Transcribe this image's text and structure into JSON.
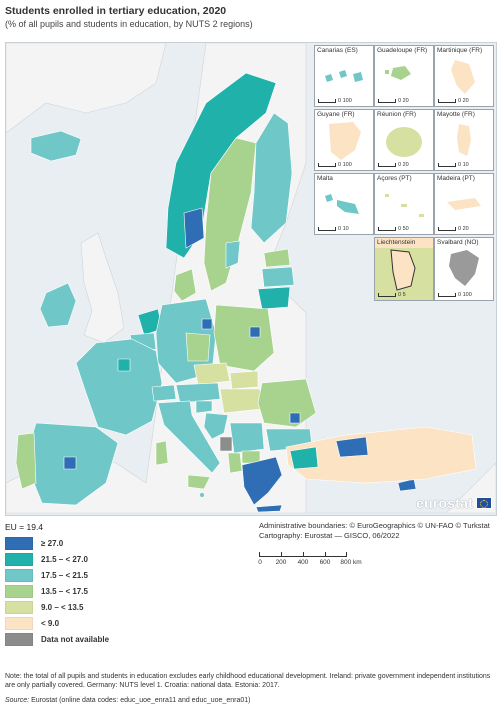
{
  "title": "Students enrolled in tertiary education, 2020",
  "subtitle": "(% of all pupils and students in education, by NUTS 2 regions)",
  "legend": {
    "eu_value": "EU = 19.4",
    "classes": [
      {
        "label": "≥ 27.0",
        "color": "#2f6db5"
      },
      {
        "label": "21.5 – < 27.0",
        "color": "#1fb1aa"
      },
      {
        "label": "17.5 – < 21.5",
        "color": "#6fc7c7"
      },
      {
        "label": "13.5 – < 17.5",
        "color": "#a7d38e"
      },
      {
        "label": "9.0 – < 13.5",
        "color": "#d6e1a1"
      },
      {
        "label": "< 9.0",
        "color": "#fbe3c4"
      },
      {
        "label": "Data not available",
        "color": "#8c8c8c"
      }
    ]
  },
  "insets": [
    {
      "label": "Canarias (ES)",
      "scale": "0 100"
    },
    {
      "label": "Guadeloupe (FR)",
      "scale": "0 20"
    },
    {
      "label": "Martinique (FR)",
      "scale": "0 20"
    },
    {
      "label": "Guyane (FR)",
      "scale": "0 100"
    },
    {
      "label": "Réunion (FR)",
      "scale": "0 20"
    },
    {
      "label": "Mayotte (FR)",
      "scale": "0 10"
    },
    {
      "label": "Malta",
      "scale": "0 10"
    },
    {
      "label": "Açores (PT)",
      "scale": "0 50"
    },
    {
      "label": "Madeira (PT)",
      "scale": "0 20"
    },
    {
      "label": "Liechtenstein",
      "scale": "0 5"
    },
    {
      "label": "Svalbard (NO)",
      "scale": "0 100"
    }
  ],
  "credits": {
    "boundaries": "Administrative boundaries: © EuroGeographics © UN-FAO © Turkstat",
    "cartography": "Cartography: Eurostat — GISCO, 06/2022"
  },
  "scalebar": {
    "ticks": [
      "0",
      "200",
      "400",
      "600",
      "800 km"
    ]
  },
  "logo": "eurostat",
  "note": "Note: the total of all pupils and students in education excludes early childhood educational development. Ireland: private government independent institutions are only partially covered. Germany: NUTS level 1. Croatia: national data. Estonia: 2017.",
  "source": {
    "label": "Source:",
    "text": "Eurostat (online data codes: educ_uoe_enra11 and educ_uoe_enra01)"
  }
}
